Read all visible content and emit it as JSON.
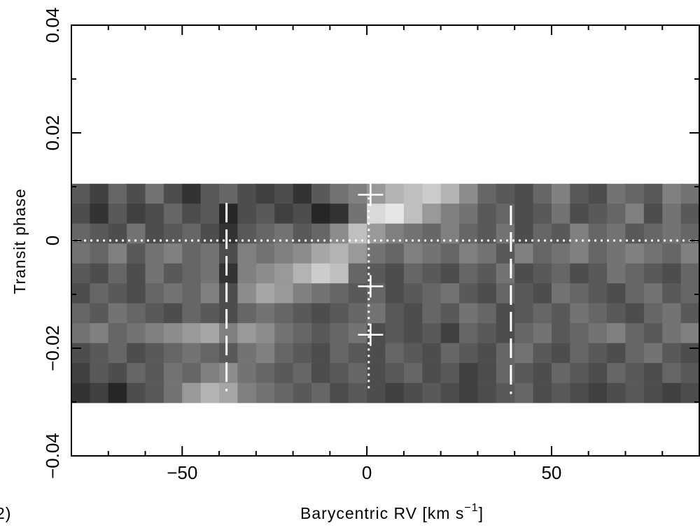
{
  "chart_data": {
    "type": "heatmap",
    "colormap": "gray",
    "panel_label": "2)",
    "xlabel": [
      "Barycentric RV [km s",
      "−1",
      "]"
    ],
    "ylabel": "Transit phase",
    "xlim": [
      -80,
      90
    ],
    "ylim": [
      -0.04,
      0.04
    ],
    "xticks": [
      {
        "value": -50,
        "label": "−50"
      },
      0,
      50
    ],
    "yticks": [
      {
        "value": -0.04,
        "label": "−0.04"
      },
      {
        "value": -0.02,
        "label": "−0.02"
      },
      0,
      0.02,
      0.04
    ],
    "xminorticks": [
      -70,
      -60,
      -40,
      -30,
      -20,
      -10,
      10,
      20,
      30,
      40,
      60,
      70,
      80
    ],
    "yminorticks": [
      -0.03,
      -0.01,
      0.01,
      0.03
    ],
    "x": [
      -77.5,
      -72.5,
      -67.5,
      -62.5,
      -57.5,
      -52.5,
      -47.5,
      -42.5,
      -37.5,
      -32.5,
      -27.5,
      -22.5,
      -17.5,
      -12.5,
      -7.5,
      -2.5,
      2.5,
      7.5,
      12.5,
      17.5,
      22.5,
      27.5,
      32.5,
      37.5,
      42.5,
      47.5,
      52.5,
      57.5,
      62.5,
      67.5,
      72.5,
      77.5,
      82.5,
      87.5
    ],
    "y": [
      0.0087,
      0.005,
      0.0013,
      -0.0024,
      -0.0061,
      -0.0098,
      -0.0135,
      -0.0172,
      -0.0209,
      -0.0246,
      -0.0283
    ],
    "values": [
      [
        0.35,
        0.25,
        0.4,
        0.3,
        0.45,
        0.3,
        0.2,
        0.35,
        0.4,
        0.3,
        0.25,
        0.3,
        0.2,
        0.35,
        0.45,
        0.5,
        0.6,
        0.7,
        0.75,
        0.8,
        0.7,
        0.55,
        0.4,
        0.35,
        0.3,
        0.4,
        0.5,
        0.35,
        0.3,
        0.45,
        0.4,
        0.35,
        0.5,
        0.45
      ],
      [
        0.3,
        0.2,
        0.35,
        0.25,
        0.3,
        0.4,
        0.3,
        0.35,
        0.15,
        0.3,
        0.35,
        0.25,
        0.3,
        0.15,
        0.2,
        0.45,
        0.85,
        0.9,
        0.75,
        0.6,
        0.5,
        0.45,
        0.35,
        0.4,
        0.3,
        0.35,
        0.45,
        0.3,
        0.35,
        0.4,
        0.5,
        0.3,
        0.45,
        0.35
      ],
      [
        0.4,
        0.35,
        0.3,
        0.45,
        0.3,
        0.35,
        0.4,
        0.3,
        0.2,
        0.35,
        0.4,
        0.45,
        0.35,
        0.4,
        0.55,
        0.75,
        0.6,
        0.5,
        0.45,
        0.4,
        0.5,
        0.4,
        0.35,
        0.45,
        0.3,
        0.4,
        0.35,
        0.5,
        0.4,
        0.45,
        0.35,
        0.4,
        0.45,
        0.4
      ],
      [
        0.45,
        0.4,
        0.5,
        0.35,
        0.45,
        0.5,
        0.4,
        0.45,
        0.3,
        0.5,
        0.45,
        0.5,
        0.55,
        0.65,
        0.7,
        0.6,
        0.45,
        0.4,
        0.5,
        0.45,
        0.4,
        0.5,
        0.45,
        0.35,
        0.5,
        0.4,
        0.45,
        0.5,
        0.4,
        0.45,
        0.5,
        0.45,
        0.4,
        0.5
      ],
      [
        0.35,
        0.3,
        0.4,
        0.3,
        0.45,
        0.35,
        0.4,
        0.45,
        0.2,
        0.5,
        0.55,
        0.6,
        0.7,
        0.8,
        0.75,
        0.4,
        0.35,
        0.3,
        0.4,
        0.35,
        0.3,
        0.4,
        0.35,
        0.45,
        0.3,
        0.35,
        0.4,
        0.3,
        0.35,
        0.45,
        0.4,
        0.35,
        0.3,
        0.4
      ],
      [
        0.3,
        0.4,
        0.35,
        0.3,
        0.4,
        0.45,
        0.4,
        0.5,
        0.3,
        0.55,
        0.65,
        0.6,
        0.5,
        0.45,
        0.4,
        0.35,
        0.4,
        0.3,
        0.35,
        0.4,
        0.45,
        0.35,
        0.3,
        0.4,
        0.35,
        0.3,
        0.45,
        0.4,
        0.35,
        0.3,
        0.4,
        0.45,
        0.35,
        0.4
      ],
      [
        0.4,
        0.35,
        0.45,
        0.4,
        0.35,
        0.3,
        0.4,
        0.35,
        0.3,
        0.4,
        0.45,
        0.4,
        0.35,
        0.3,
        0.35,
        0.4,
        0.45,
        0.35,
        0.3,
        0.4,
        0.35,
        0.45,
        0.4,
        0.3,
        0.35,
        0.4,
        0.35,
        0.45,
        0.4,
        0.35,
        0.3,
        0.4,
        0.45,
        0.35
      ],
      [
        0.45,
        0.5,
        0.4,
        0.45,
        0.5,
        0.55,
        0.6,
        0.65,
        0.5,
        0.6,
        0.55,
        0.45,
        0.4,
        0.35,
        0.4,
        0.45,
        0.3,
        0.35,
        0.3,
        0.35,
        0.25,
        0.4,
        0.35,
        0.3,
        0.4,
        0.45,
        0.35,
        0.4,
        0.45,
        0.5,
        0.4,
        0.35,
        0.45,
        0.5
      ],
      [
        0.3,
        0.35,
        0.4,
        0.3,
        0.35,
        0.4,
        0.45,
        0.4,
        0.35,
        0.45,
        0.5,
        0.4,
        0.35,
        0.3,
        0.4,
        0.35,
        0.3,
        0.4,
        0.35,
        0.3,
        0.4,
        0.35,
        0.3,
        0.4,
        0.45,
        0.35,
        0.3,
        0.4,
        0.35,
        0.3,
        0.4,
        0.45,
        0.35,
        0.3
      ],
      [
        0.25,
        0.35,
        0.3,
        0.4,
        0.35,
        0.45,
        0.4,
        0.5,
        0.55,
        0.45,
        0.4,
        0.35,
        0.4,
        0.3,
        0.35,
        0.4,
        0.3,
        0.35,
        0.4,
        0.3,
        0.35,
        0.25,
        0.3,
        0.4,
        0.35,
        0.3,
        0.4,
        0.35,
        0.3,
        0.4,
        0.35,
        0.3,
        0.4,
        0.35
      ],
      [
        0.2,
        0.25,
        0.15,
        0.3,
        0.35,
        0.45,
        0.6,
        0.7,
        0.65,
        0.5,
        0.45,
        0.4,
        0.35,
        0.4,
        0.3,
        0.35,
        0.3,
        0.25,
        0.3,
        0.35,
        0.3,
        0.25,
        0.3,
        0.35,
        0.4,
        0.3,
        0.35,
        0.3,
        0.25,
        0.3,
        0.35,
        0.3,
        0.25,
        0.3
      ]
    ],
    "lines": [
      {
        "x": [
          -38,
          -38
        ],
        "y": [
          0.007,
          -0.028
        ],
        "style": "dashed"
      },
      {
        "x": [
          39,
          39
        ],
        "y": [
          0.0065,
          -0.0285
        ],
        "style": "dashed"
      },
      {
        "x": [
          0.5,
          0.5
        ],
        "y": [
          0.008,
          -0.028
        ],
        "style": "dotted"
      },
      {
        "x": [
          -80,
          90
        ],
        "y": [
          0,
          0
        ],
        "style": "dotted"
      }
    ],
    "markers": {
      "x": [
        1,
        1,
        1
      ],
      "y": [
        0.0085,
        -0.0085,
        -0.0175
      ],
      "symbol": "+",
      "color": "#ffffff"
    }
  }
}
